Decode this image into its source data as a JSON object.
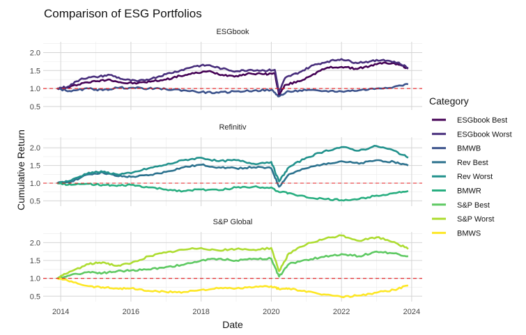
{
  "chart_data": {
    "type": "line",
    "title": "Comparison of ESG Portfolios",
    "xlabel": "Date",
    "ylabel": "Cumulative Return",
    "x_ticks": [
      "2014",
      "2016",
      "2018",
      "2020",
      "2022",
      "2024"
    ],
    "xlim": [
      2013.5,
      2024.3
    ],
    "grid": true,
    "reference_line": {
      "y": 1.0,
      "color": "#e41a1c",
      "style": "dashed"
    },
    "legend": {
      "title": "Category",
      "position": "right",
      "items": [
        {
          "label": "ESGbook Best",
          "color": "#440154"
        },
        {
          "label": "ESGbook Worst",
          "color": "#472d7b"
        },
        {
          "label": "BMWB",
          "color": "#3b528b"
        },
        {
          "label": "Rev Best",
          "color": "#2c728e"
        },
        {
          "label": "Rev Worst",
          "color": "#21918c"
        },
        {
          "label": "BMWR",
          "color": "#28ae80"
        },
        {
          "label": "S&P Best",
          "color": "#5ec962"
        },
        {
          "label": "S&P Worst",
          "color": "#addc30"
        },
        {
          "label": "BMWS",
          "color": "#fde725"
        }
      ]
    },
    "panels": [
      {
        "strip": "ESGbook",
        "ylim": [
          0.4,
          2.3
        ],
        "y_ticks": [
          "0.5",
          "1.0",
          "1.5",
          "2.0"
        ],
        "series": [
          {
            "name": "ESGbook Best",
            "color": "#440154",
            "x": [
              2013.9,
              2014.2,
              2014.6,
              2015.0,
              2015.4,
              2015.8,
              2016.2,
              2016.6,
              2017.0,
              2017.4,
              2017.8,
              2018.2,
              2018.6,
              2019.0,
              2019.4,
              2019.8,
              2020.1,
              2020.22,
              2020.4,
              2020.8,
              2021.2,
              2021.6,
              2022.0,
              2022.4,
              2022.8,
              2023.2,
              2023.6,
              2023.9
            ],
            "y": [
              1.0,
              1.02,
              1.15,
              1.2,
              1.25,
              1.15,
              1.15,
              1.2,
              1.25,
              1.35,
              1.42,
              1.48,
              1.38,
              1.35,
              1.42,
              1.4,
              1.42,
              0.82,
              1.1,
              1.2,
              1.4,
              1.58,
              1.6,
              1.55,
              1.62,
              1.72,
              1.68,
              1.55
            ]
          },
          {
            "name": "ESGbook Worst",
            "color": "#472d7b",
            "x": [
              2013.9,
              2014.2,
              2014.6,
              2015.0,
              2015.4,
              2015.8,
              2016.2,
              2016.6,
              2017.0,
              2017.4,
              2017.8,
              2018.2,
              2018.6,
              2019.0,
              2019.4,
              2019.8,
              2020.1,
              2020.22,
              2020.4,
              2020.8,
              2021.2,
              2021.6,
              2022.0,
              2022.4,
              2022.8,
              2023.2,
              2023.6,
              2023.9
            ],
            "y": [
              1.0,
              1.05,
              1.28,
              1.32,
              1.38,
              1.25,
              1.2,
              1.28,
              1.4,
              1.5,
              1.62,
              1.65,
              1.55,
              1.48,
              1.52,
              1.5,
              1.52,
              0.9,
              1.3,
              1.45,
              1.65,
              1.75,
              1.82,
              1.72,
              1.75,
              1.8,
              1.72,
              1.58
            ]
          },
          {
            "name": "BMWB",
            "color": "#3b528b",
            "x": [
              2013.9,
              2014.3,
              2014.8,
              2015.2,
              2015.6,
              2016.0,
              2016.5,
              2017.0,
              2017.5,
              2018.0,
              2018.5,
              2019.0,
              2019.5,
              2020.0,
              2020.22,
              2020.5,
              2021.0,
              2021.5,
              2022.0,
              2022.5,
              2023.0,
              2023.5,
              2023.9
            ],
            "y": [
              1.0,
              0.92,
              1.0,
              0.95,
              1.02,
              1.02,
              1.0,
              0.98,
              0.95,
              0.9,
              0.88,
              0.92,
              0.94,
              0.96,
              0.78,
              0.92,
              0.95,
              0.93,
              0.92,
              0.95,
              1.0,
              1.05,
              1.12
            ]
          }
        ]
      },
      {
        "strip": "Refinitiv",
        "ylim": [
          0.35,
          2.3
        ],
        "y_ticks": [
          "0.5",
          "1.0",
          "1.5",
          "2.0"
        ],
        "series": [
          {
            "name": "Rev Best",
            "color": "#2c728e",
            "x": [
              2013.9,
              2014.3,
              2014.8,
              2015.2,
              2015.6,
              2016.0,
              2016.5,
              2017.0,
              2017.5,
              2018.0,
              2018.5,
              2019.0,
              2019.5,
              2020.0,
              2020.22,
              2020.5,
              2021.0,
              2021.5,
              2022.0,
              2022.5,
              2023.0,
              2023.5,
              2023.9
            ],
            "y": [
              1.0,
              1.05,
              1.25,
              1.3,
              1.2,
              1.18,
              1.22,
              1.32,
              1.45,
              1.52,
              1.45,
              1.42,
              1.45,
              1.42,
              0.9,
              1.25,
              1.42,
              1.55,
              1.62,
              1.55,
              1.65,
              1.6,
              1.5
            ]
          },
          {
            "name": "Rev Worst",
            "color": "#21918c",
            "x": [
              2013.9,
              2014.3,
              2014.8,
              2015.2,
              2015.6,
              2016.0,
              2016.5,
              2017.0,
              2017.5,
              2018.0,
              2018.5,
              2019.0,
              2019.5,
              2020.0,
              2020.22,
              2020.5,
              2021.0,
              2021.5,
              2022.0,
              2022.5,
              2023.0,
              2023.5,
              2023.9
            ],
            "y": [
              1.0,
              1.08,
              1.3,
              1.32,
              1.25,
              1.28,
              1.42,
              1.52,
              1.65,
              1.72,
              1.62,
              1.65,
              1.55,
              1.6,
              1.05,
              1.45,
              1.72,
              1.9,
              2.02,
              1.92,
              2.05,
              1.92,
              1.72
            ]
          },
          {
            "name": "BMWR",
            "color": "#28ae80",
            "x": [
              2013.9,
              2014.3,
              2014.8,
              2015.2,
              2015.6,
              2016.0,
              2016.5,
              2017.0,
              2017.5,
              2018.0,
              2018.5,
              2019.0,
              2019.5,
              2020.0,
              2020.22,
              2020.5,
              2021.0,
              2021.5,
              2022.0,
              2022.5,
              2023.0,
              2023.5,
              2023.9
            ],
            "y": [
              1.0,
              0.95,
              0.98,
              0.95,
              0.92,
              0.95,
              0.88,
              0.82,
              0.78,
              0.82,
              0.8,
              0.88,
              0.9,
              0.88,
              0.75,
              0.72,
              0.6,
              0.55,
              0.52,
              0.55,
              0.65,
              0.72,
              0.78
            ]
          }
        ]
      },
      {
        "strip": "S&P Global",
        "ylim": [
          0.35,
          2.3
        ],
        "y_ticks": [
          "0.5",
          "1.0",
          "1.5",
          "2.0"
        ],
        "series": [
          {
            "name": "S&P Best",
            "color": "#5ec962",
            "x": [
              2013.9,
              2014.3,
              2014.8,
              2015.2,
              2015.6,
              2016.0,
              2016.5,
              2017.0,
              2017.5,
              2018.0,
              2018.5,
              2019.0,
              2019.5,
              2020.0,
              2020.22,
              2020.5,
              2021.0,
              2021.5,
              2022.0,
              2022.5,
              2023.0,
              2023.5,
              2023.9
            ],
            "y": [
              1.0,
              1.1,
              1.18,
              1.15,
              1.2,
              1.22,
              1.25,
              1.32,
              1.38,
              1.5,
              1.55,
              1.5,
              1.55,
              1.55,
              1.05,
              1.4,
              1.52,
              1.6,
              1.68,
              1.62,
              1.75,
              1.7,
              1.62
            ]
          },
          {
            "name": "S&P Worst",
            "color": "#addc30",
            "x": [
              2013.9,
              2014.3,
              2014.8,
              2015.2,
              2015.6,
              2016.0,
              2016.5,
              2017.0,
              2017.5,
              2018.0,
              2018.5,
              2019.0,
              2019.5,
              2020.0,
              2020.22,
              2020.5,
              2021.0,
              2021.5,
              2022.0,
              2022.5,
              2023.0,
              2023.5,
              2023.9
            ],
            "y": [
              1.0,
              1.2,
              1.4,
              1.45,
              1.35,
              1.42,
              1.62,
              1.72,
              1.8,
              1.85,
              1.78,
              1.82,
              1.8,
              1.85,
              1.2,
              1.7,
              1.95,
              2.1,
              2.2,
              2.05,
              2.15,
              2.02,
              1.82
            ]
          },
          {
            "name": "BMWS",
            "color": "#fde725",
            "x": [
              2013.9,
              2014.3,
              2014.8,
              2015.2,
              2015.6,
              2016.0,
              2016.5,
              2017.0,
              2017.5,
              2018.0,
              2018.5,
              2019.0,
              2019.5,
              2020.0,
              2020.22,
              2020.5,
              2021.0,
              2021.5,
              2022.0,
              2022.5,
              2023.0,
              2023.5,
              2023.9
            ],
            "y": [
              1.0,
              0.92,
              0.78,
              0.75,
              0.72,
              0.72,
              0.65,
              0.62,
              0.62,
              0.68,
              0.72,
              0.72,
              0.75,
              0.78,
              0.7,
              0.72,
              0.62,
              0.55,
              0.48,
              0.52,
              0.6,
              0.68,
              0.8
            ]
          }
        ]
      }
    ]
  }
}
